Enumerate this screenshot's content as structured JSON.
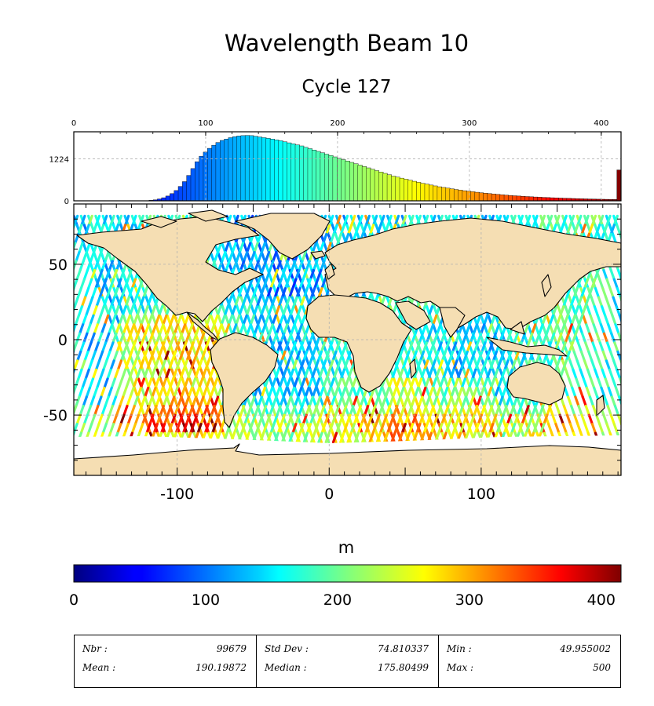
{
  "title": "Wavelength Beam 10",
  "subtitle": "Cycle 127",
  "colors": {
    "land": "#f5deb3",
    "ice": "#ffffff",
    "frame": "#000000",
    "grid": "#b0b0b0"
  },
  "colormap": "jet",
  "histogram": {
    "x_ticks": [
      0,
      100,
      200,
      300,
      400
    ],
    "y_ticks": [
      0,
      1224
    ],
    "x_range": [
      0,
      415
    ],
    "y_max": 1920,
    "counts_profile": [
      0,
      0,
      0,
      0,
      0,
      0,
      0,
      0,
      0,
      0,
      0,
      0,
      0,
      0,
      0,
      0,
      0,
      5,
      15,
      30,
      55,
      90,
      140,
      210,
      300,
      420,
      560,
      740,
      940,
      1140,
      1300,
      1420,
      1530,
      1620,
      1700,
      1760,
      1800,
      1840,
      1870,
      1890,
      1900,
      1905,
      1900,
      1880,
      1860,
      1840,
      1820,
      1800,
      1775,
      1750,
      1720,
      1690,
      1660,
      1630,
      1600,
      1560,
      1520,
      1480,
      1440,
      1400,
      1360,
      1320,
      1280,
      1240,
      1200,
      1160,
      1120,
      1080,
      1040,
      1000,
      960,
      920,
      880,
      840,
      800,
      760,
      720,
      690,
      660,
      630,
      600,
      570,
      540,
      510,
      485,
      460,
      435,
      410,
      390,
      370,
      350,
      330,
      312,
      295,
      280,
      265,
      250,
      236,
      222,
      210,
      198,
      187,
      176,
      166,
      157,
      148,
      140,
      132,
      125,
      118,
      112,
      106,
      100,
      95,
      90,
      85,
      80,
      76,
      72,
      68,
      64,
      60,
      57,
      54,
      51,
      48,
      46,
      44,
      42,
      40,
      900
    ]
  },
  "map": {
    "x_ticks": [
      -100,
      0,
      100
    ],
    "y_ticks": [
      50,
      0,
      -50
    ],
    "lon_range": [
      -168,
      192
    ],
    "lat_range": [
      -90,
      90
    ]
  },
  "colorbar": {
    "label": "m",
    "ticks": [
      0,
      100,
      200,
      300,
      400
    ],
    "range": [
      0,
      415
    ]
  },
  "stats": {
    "nbr_label": "Nbr :",
    "nbr": "99679",
    "mean_label": "Mean :",
    "mean": "190.19872",
    "std_label": "Std Dev :",
    "std": "74.810337",
    "median_label": "Median :",
    "median": "175.80499",
    "min_label": "Min :",
    "min": "49.955002",
    "max_label": "Max :",
    "max": "500"
  }
}
